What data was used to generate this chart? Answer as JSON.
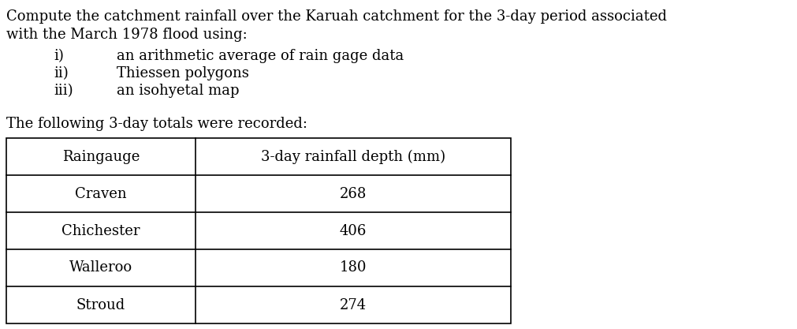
{
  "line1": "Compute the catchment rainfall over the Karuah catchment for the 3-day period associated",
  "line2": "with the March 1978 flood using:",
  "list_items": [
    [
      "i)",
      "an arithmetic average of rain gage data"
    ],
    [
      "ii)",
      "Thiessen polygons"
    ],
    [
      "iii)",
      "an isohyetal map"
    ]
  ],
  "paragraph2": "The following 3-day totals were recorded:",
  "table_headers": [
    "Raingauge",
    "3-day rainfall depth (mm)"
  ],
  "table_rows": [
    [
      "Craven",
      "268"
    ],
    [
      "Chichester",
      "406"
    ],
    [
      "Walleroo",
      "180"
    ],
    [
      "Stroud",
      "274"
    ]
  ],
  "bg_color": "#ffffff",
  "text_color": "#000000",
  "font_size": 13.0,
  "table_font_size": 13.0
}
